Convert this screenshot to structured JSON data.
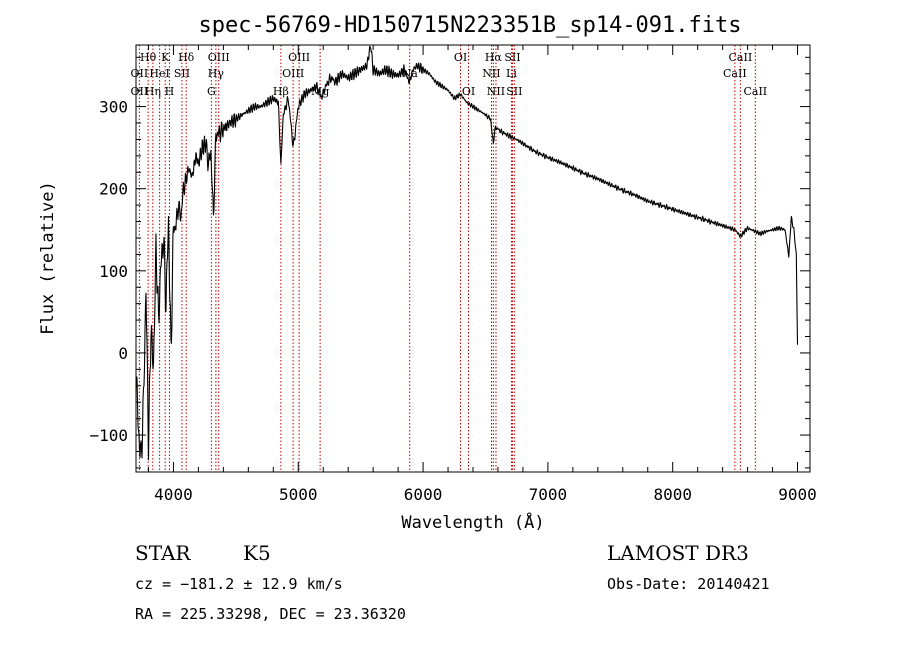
{
  "chart_data": {
    "type": "line",
    "title": "spec-56769-HD150715N223351B_sp14-091.fits",
    "xlabel": "Wavelength (Å)",
    "ylabel": "Flux (relative)",
    "xlim": [
      3700,
      9100
    ],
    "ylim": [
      -145,
      375
    ],
    "xticks": [
      4000,
      5000,
      6000,
      7000,
      8000,
      9000
    ],
    "yticks": [
      -100,
      0,
      100,
      200,
      300
    ],
    "series": [
      {
        "name": "flux",
        "x": [
          3700,
          3720,
          3740,
          3760,
          3780,
          3800,
          3820,
          3840,
          3860,
          3880,
          3900,
          3920,
          3940,
          3960,
          3980,
          4000,
          4020,
          4040,
          4060,
          4080,
          4100,
          4120,
          4150,
          4180,
          4200,
          4230,
          4260,
          4280,
          4300,
          4320,
          4340,
          4380,
          4420,
          4450,
          4500,
          4550,
          4600,
          4650,
          4700,
          4750,
          4800,
          4840,
          4861,
          4880,
          4920,
          4960,
          5000,
          5050,
          5100,
          5150,
          5183,
          5220,
          5260,
          5300,
          5350,
          5400,
          5450,
          5500,
          5550,
          5580,
          5600,
          5650,
          5700,
          5750,
          5800,
          5850,
          5890,
          5920,
          5950,
          6000,
          6050,
          6100,
          6150,
          6200,
          6250,
          6300,
          6350,
          6400,
          6450,
          6500,
          6540,
          6563,
          6580,
          6620,
          6680,
          6750,
          6800,
          6900,
          7000,
          7100,
          7200,
          7300,
          7400,
          7500,
          7600,
          7700,
          7800,
          7900,
          8000,
          8100,
          8200,
          8300,
          8400,
          8500,
          8542,
          8600,
          8662,
          8700,
          8750,
          8800,
          8850,
          8900,
          8930,
          8950,
          8970,
          8990,
          9000
        ],
        "y": [
          -20,
          -95,
          -130,
          -60,
          80,
          -110,
          30,
          -20,
          130,
          40,
          110,
          140,
          60,
          160,
          0,
          150,
          155,
          180,
          165,
          200,
          210,
          225,
          215,
          240,
          230,
          250,
          255,
          230,
          245,
          165,
          265,
          270,
          275,
          280,
          285,
          290,
          295,
          300,
          300,
          305,
          310,
          305,
          230,
          290,
          310,
          250,
          300,
          315,
          320,
          325,
          310,
          325,
          335,
          330,
          340,
          335,
          340,
          345,
          350,
          375,
          345,
          340,
          345,
          340,
          338,
          345,
          330,
          345,
          350,
          345,
          340,
          330,
          325,
          320,
          310,
          315,
          305,
          300,
          295,
          290,
          285,
          255,
          275,
          270,
          265,
          260,
          255,
          245,
          238,
          232,
          225,
          218,
          212,
          205,
          198,
          192,
          185,
          180,
          175,
          170,
          165,
          160,
          155,
          150,
          142,
          152,
          148,
          145,
          148,
          150,
          152,
          150,
          118,
          165,
          150,
          120,
          10
        ]
      }
    ],
    "line_labels_row1": [
      {
        "x": 3797,
        "label": "Hθ"
      },
      {
        "x": 3934,
        "label": "K"
      },
      {
        "x": 4102,
        "label": "Hδ"
      },
      {
        "x": 4363,
        "label": "OIII"
      },
      {
        "x": 5007,
        "label": "OIII"
      },
      {
        "x": 6300,
        "label": "OI"
      },
      {
        "x": 6563,
        "label": "Hα"
      },
      {
        "x": 6716,
        "label": "SII"
      },
      {
        "x": 8542,
        "label": "CaII"
      }
    ],
    "line_labels_row2": [
      {
        "x": 3727,
        "label": "OII"
      },
      {
        "x": 3889,
        "label": "HeI"
      },
      {
        "x": 4068,
        "label": "SII"
      },
      {
        "x": 4340,
        "label": "Hγ"
      },
      {
        "x": 4959,
        "label": "OIII"
      },
      {
        "x": 5893,
        "label": "Na"
      },
      {
        "x": 6548,
        "label": "NII"
      },
      {
        "x": 6708,
        "label": "Li"
      },
      {
        "x": 8498,
        "label": "CaII"
      }
    ],
    "line_labels_row3": [
      {
        "x": 3727,
        "label": "OII"
      },
      {
        "x": 3835,
        "label": "Hη"
      },
      {
        "x": 3968,
        "label": "H"
      },
      {
        "x": 4304,
        "label": "G"
      },
      {
        "x": 4861,
        "label": "Hβ"
      },
      {
        "x": 5175,
        "label": "Mg"
      },
      {
        "x": 6364,
        "label": "OI"
      },
      {
        "x": 6584,
        "label": "NII"
      },
      {
        "x": 6731,
        "label": "SII"
      },
      {
        "x": 8662,
        "label": "CaII"
      }
    ],
    "line_marker_positions": [
      3727,
      3797,
      3835,
      3889,
      3934,
      3968,
      4068,
      4102,
      4304,
      4340,
      4363,
      4861,
      4959,
      5007,
      5175,
      5893,
      6300,
      6364,
      6548,
      6563,
      6584,
      6708,
      6716,
      6731,
      8498,
      8542,
      8662
    ]
  },
  "footer": {
    "class_label": "STAR",
    "subclass": "K5",
    "survey": "LAMOST DR3",
    "cz": "cz = −181.2 ± 12.9 km/s",
    "obs_date": "Obs-Date: 20140421",
    "radec": "RA = 225.33298, DEC =  23.36320"
  },
  "colors": {
    "axes": "#000000",
    "spectrum": "#000000",
    "line_markers": "#c00000",
    "background": "#ffffff"
  }
}
